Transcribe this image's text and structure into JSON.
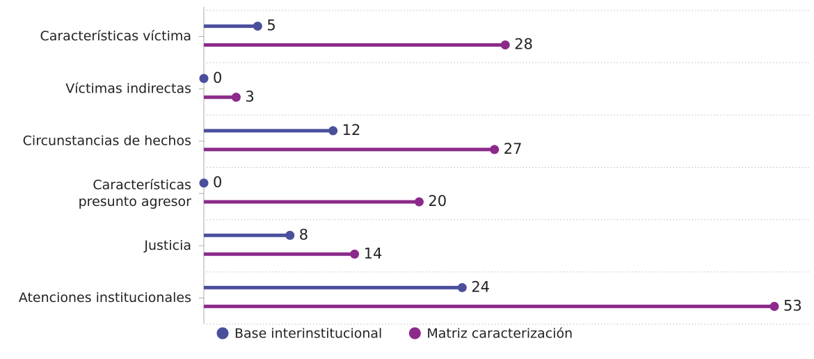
{
  "chart_data": {
    "type": "lollipop",
    "categories": [
      "Características víctima",
      "Víctimas indirectas",
      "Circunstancias de hechos",
      [
        "Características",
        "presunto agresor"
      ],
      "Justicia",
      "Atenciones institucionales"
    ],
    "series": [
      {
        "name": "Base interinstitucional",
        "color": "#4a4f9c",
        "values": [
          5,
          0,
          12,
          0,
          8,
          24
        ]
      },
      {
        "name": "Matriz caracterización",
        "color": "#8b2a8a",
        "values": [
          28,
          3,
          27,
          20,
          14,
          53
        ]
      }
    ],
    "legend": "bottom"
  }
}
